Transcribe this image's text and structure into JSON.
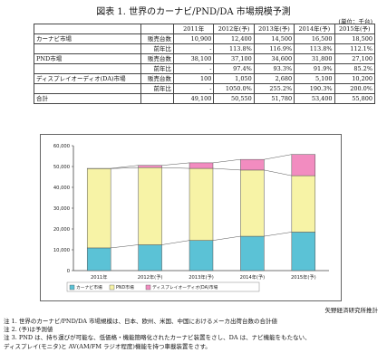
{
  "title": "図表 1. 世界のカーナビ/PND/DA 市場規模予測",
  "unit": "(単位：千台)",
  "table": {
    "years": [
      "2011年",
      "2012年(予)",
      "2013年(予)",
      "2014年(予)",
      "2015年(予)"
    ],
    "rows": [
      {
        "name": "カーナビ市場",
        "metric": "販売台数",
        "values": [
          "10,900",
          "12,400",
          "14,500",
          "16,500",
          "18,500"
        ]
      },
      {
        "name": "",
        "metric": "前年比",
        "values": [
          "-",
          "113.8%",
          "116.9%",
          "113.8%",
          "112.1%"
        ]
      },
      {
        "name": "PND市場",
        "metric": "販売台数",
        "values": [
          "38,100",
          "37,100",
          "34,600",
          "31,800",
          "27,100"
        ]
      },
      {
        "name": "",
        "metric": "前年比",
        "values": [
          "-",
          "97.4%",
          "93.3%",
          "91.9%",
          "85.2%"
        ]
      },
      {
        "name": "ディスプレイオーディオ(DA)市場",
        "metric": "販売台数",
        "values": [
          "100",
          "1,050",
          "2,680",
          "5,100",
          "10,200"
        ]
      },
      {
        "name": "",
        "metric": "前年比",
        "values": [
          "-",
          "1050.0%",
          "255.2%",
          "190.3%",
          "200.0%"
        ]
      },
      {
        "name": "合計",
        "metric": "",
        "values": [
          "49,100",
          "50,550",
          "51,780",
          "53,400",
          "55,800"
        ]
      }
    ]
  },
  "chart_data": {
    "type": "bar",
    "stacked": true,
    "categories": [
      "2011年",
      "2012年(予)",
      "2013年(予)",
      "2014年(予)",
      "2015年(予)"
    ],
    "series": [
      {
        "name": "カーナビ市場",
        "values": [
          10900,
          12400,
          14500,
          16500,
          18500
        ],
        "color": "#5bc2d6"
      },
      {
        "name": "PND市場",
        "values": [
          38100,
          37100,
          34600,
          31800,
          27100
        ],
        "color": "#f7f3a6"
      },
      {
        "name": "ディスプレイオーディオ(DA)市場",
        "values": [
          100,
          1050,
          2680,
          5100,
          10200
        ],
        "color": "#f28cc0"
      }
    ],
    "ylim": [
      0,
      60000
    ],
    "yticks": [
      "0",
      "10,000",
      "20,000",
      "30,000",
      "40,000",
      "50,000",
      "60,000"
    ],
    "legend_position": "bottom-left",
    "grid": false
  },
  "source": "矢野経済研究所推計",
  "notes": [
    "注 1. 世界のカーナビ/PND/DA 市場規模は、日本、欧州、米国、中国におけるメーカ出荷台数の合計値",
    "注 2. (予)は予測値",
    "注 3. PND は、持ち運びが可能な、低価格・機能簡略化されたカーナビ装置をさし、DA は、ナビ機能をもたない、",
    "ディスプレイ(モニタ)と AV(AM/FM ラジオ程度)機能を持つ車載装置をさす。"
  ]
}
